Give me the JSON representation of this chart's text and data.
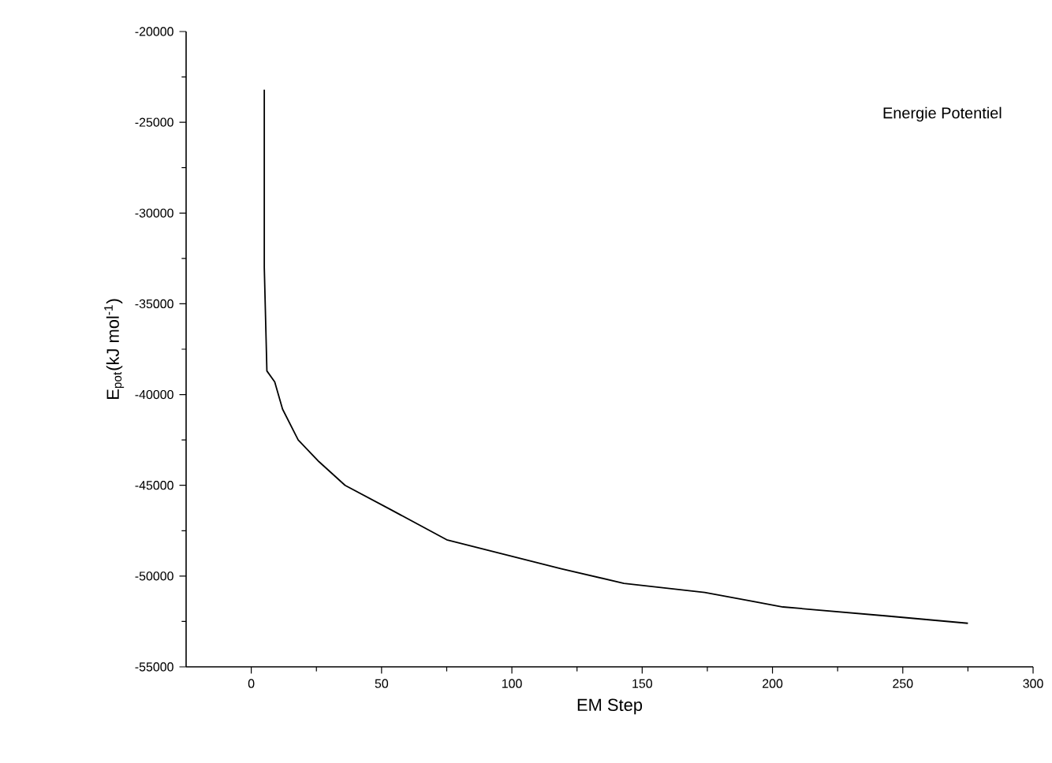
{
  "chart_data": {
    "type": "line",
    "xlabel": "EM Step",
    "ylabel": "E$_{pot}$(kJ mol$^{-1}$)",
    "annotations": [
      "Energie Potentiel"
    ],
    "x": [
      5,
      5,
      6,
      9,
      12,
      18,
      26,
      36,
      53,
      75,
      97,
      119,
      143,
      174,
      204,
      244,
      275
    ],
    "series": [
      {
        "color": "#000000",
        "values": [
          -23200,
          -33000,
          -38700,
          -39300,
          -40800,
          -42500,
          -43700,
          -45000,
          -46300,
          -48000,
          -48800,
          -49600,
          -50400,
          -50900,
          -51700,
          -52200,
          -52600
        ]
      }
    ],
    "xlim": [
      -25,
      300
    ],
    "xticks": [
      0,
      50,
      100,
      150,
      200,
      250,
      300
    ],
    "ylim": [
      -55000,
      -20000
    ],
    "yticks": [
      -55000,
      -50000,
      -45000,
      -40000,
      -35000,
      -30000,
      -25000,
      -20000
    ],
    "grid": false,
    "marker": "none",
    "line_style": "solid"
  }
}
